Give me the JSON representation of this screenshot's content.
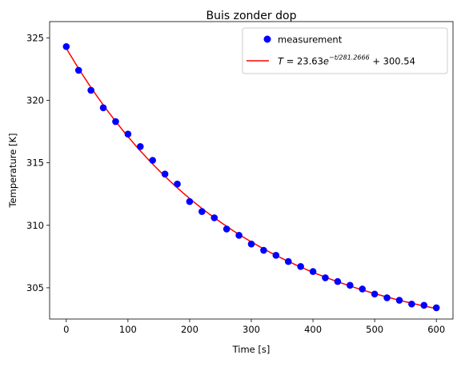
{
  "chart_data": {
    "type": "scatter",
    "title": "Buis zonder dop",
    "xlabel": "Time [s]",
    "ylabel": "Temperature [K]",
    "xlim": [
      -27,
      627
    ],
    "ylim": [
      302.5,
      326.3
    ],
    "xticks": [
      0,
      100,
      200,
      300,
      400,
      500,
      600
    ],
    "yticks": [
      305,
      310,
      315,
      320,
      325
    ],
    "grid": false,
    "legend_position": "top-right",
    "series": [
      {
        "name": "measurement",
        "type": "scatter",
        "color": "#0000ff",
        "x": [
          0,
          20,
          40,
          60,
          80,
          100,
          120,
          140,
          160,
          180,
          200,
          220,
          240,
          260,
          280,
          300,
          320,
          340,
          360,
          380,
          400,
          420,
          440,
          460,
          480,
          500,
          520,
          540,
          560,
          580,
          600
        ],
        "y": [
          324.3,
          322.4,
          320.8,
          319.4,
          318.3,
          317.3,
          316.3,
          315.2,
          314.1,
          313.3,
          311.9,
          311.1,
          310.6,
          309.7,
          309.2,
          308.5,
          308.0,
          307.6,
          307.1,
          306.7,
          306.3,
          305.8,
          305.5,
          305.2,
          304.9,
          304.5,
          304.2,
          304.0,
          303.7,
          303.6,
          303.4
        ]
      },
      {
        "name": "fit",
        "type": "line",
        "color": "#ff0000",
        "model": {
          "a": 23.63,
          "tau": 281.2666,
          "c": 300.54,
          "x_from": 0,
          "x_to": 600
        }
      }
    ],
    "legend": [
      {
        "label": "measurement",
        "marker": "dot",
        "color": "#0000ff"
      },
      {
        "label_T": "T",
        "label_eq": " = 23.63",
        "label_e": "e",
        "label_exp": "−t/281.2666",
        "label_tail": " + 300.54",
        "marker": "line",
        "color": "#ff0000"
      }
    ]
  }
}
